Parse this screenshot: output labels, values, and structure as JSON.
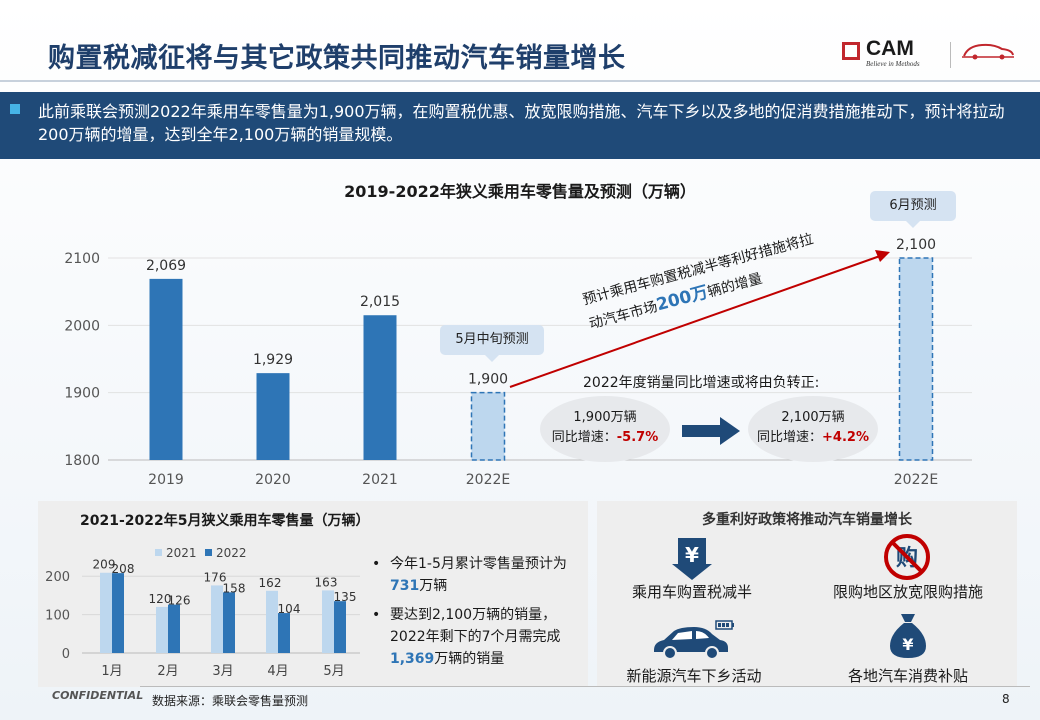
{
  "header": {
    "title": "购置税减征将与其它政策共同推动汽车销量增长",
    "logo_text": "CAM",
    "logo_sub": "Believe in Methods"
  },
  "banner": {
    "text": "此前乘联会预测2022年乘用车零售量为1,900万辆，在购置税优惠、放宽限购措施、汽车下乡以及多地的促消费措施推动下，预计将拉动200万辆的增量，达到全年2,100万辆的销量规模。"
  },
  "main_chart": {
    "callout_may": "5月中旬预测",
    "callout_june": "6月预测",
    "arrow_text_line1": "预计乘用车购置税减半等利好措施将拉",
    "arrow_text_line2_pre": "动汽车市场",
    "arrow_text_line2_hl": "200万",
    "arrow_text_line2_post": "辆的增量",
    "yoy_title": "2022年度销量同比增速或将由负转正:",
    "ellipse_left_line1": "1,900万辆",
    "ellipse_left_line2": "同比增速：",
    "ellipse_left_value": "-5.7%",
    "ellipse_right_line1": "2,100万辆",
    "ellipse_right_line2": "同比增速：",
    "ellipse_right_value": "+4.2%"
  },
  "chart_data": [
    {
      "type": "bar",
      "title": "2019-2022年狭义乘用车零售量及预测（万辆）",
      "categories": [
        "2019",
        "2020",
        "2021",
        "2022E",
        "2022E"
      ],
      "values": [
        2069,
        1929,
        2015,
        1900,
        2100
      ],
      "value_labels": [
        "2,069",
        "1,929",
        "2,015",
        "1,900",
        "2,100"
      ],
      "forecast": [
        false,
        false,
        false,
        true,
        true
      ],
      "ylim": [
        1800,
        2100
      ],
      "yticks": [
        "1800",
        "1900",
        "2000",
        "2100"
      ],
      "ytick_values": [
        1800,
        1900,
        2000,
        2100
      ],
      "colors": {
        "actual": "#2e75b6",
        "forecast_fill": "#bdd7ee",
        "forecast_border": "#2e75b6"
      }
    },
    {
      "type": "bar",
      "title": "2021-2022年5月狭义乘用车零售量（万辆）",
      "categories": [
        "1月",
        "2月",
        "3月",
        "4月",
        "5月"
      ],
      "series": [
        {
          "name": "2021",
          "values": [
            209,
            120,
            176,
            162,
            163
          ],
          "color": "#bdd7ee"
        },
        {
          "name": "2022",
          "values": [
            208,
            126,
            158,
            104,
            135
          ],
          "color": "#2e75b6"
        }
      ],
      "ylim": [
        0,
        250
      ],
      "yticks": [
        "0",
        "100",
        "200"
      ],
      "ytick_values": [
        0,
        100,
        200
      ],
      "legend": "top"
    }
  ],
  "left_panel": {
    "bullet1_pre": "今年1-5月累计零售量预计为",
    "bullet1_hl": "731",
    "bullet1_post": "万辆",
    "bullet2_pre": "要达到2,100万辆的销量，2022年剩下的7个月需完成",
    "bullet2_hl": "1,369",
    "bullet2_post": "万辆的销量"
  },
  "right_panel": {
    "title": "多重利好政策将推动汽车销量增长",
    "items": [
      {
        "label": "乘用车购置税减半",
        "icon": "tax-cut-icon"
      },
      {
        "label": "限购地区放宽限购措施",
        "icon": "no-purchase-limit-icon"
      },
      {
        "label": "新能源汽车下乡活动",
        "icon": "electric-car-icon"
      },
      {
        "label": "各地汽车消费补贴",
        "icon": "money-bag-icon"
      }
    ],
    "icon_color": "#1f4a78",
    "forbid_color": "#c00000"
  },
  "footer": {
    "confidential": "CONFIDENTIAL",
    "source": "数据来源：乘联会零售量预测",
    "page": "8"
  }
}
